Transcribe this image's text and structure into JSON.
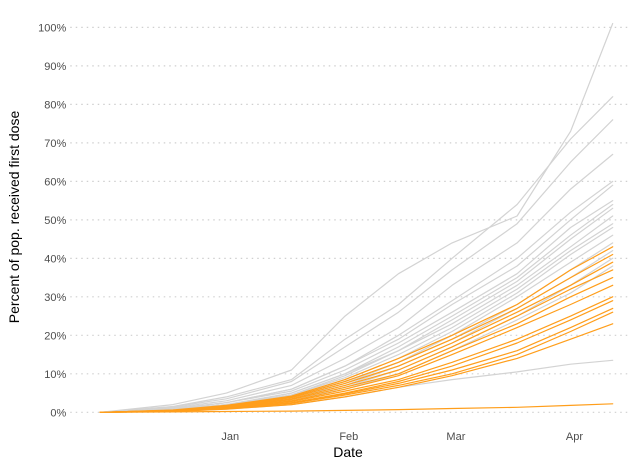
{
  "chart_data": {
    "type": "line",
    "title": "",
    "xlabel": "Date",
    "ylabel": "Percent of pop. received first dose",
    "x_ticks": [
      {
        "date": "2021-01-01",
        "label": "Jan"
      },
      {
        "date": "2021-02-01",
        "label": "Feb"
      },
      {
        "date": "2021-03-01",
        "label": "Mar"
      },
      {
        "date": "2021-04-01",
        "label": "Apr"
      }
    ],
    "y_ticks": [
      0,
      10,
      20,
      30,
      40,
      50,
      60,
      70,
      80,
      90,
      100
    ],
    "y_tick_labels": [
      "0%",
      "10%",
      "20%",
      "30%",
      "40%",
      "50%",
      "60%",
      "70%",
      "80%",
      "90%",
      "100%"
    ],
    "ylim": [
      -2,
      104
    ],
    "xlim": [
      "2020-12-03",
      "2021-04-30"
    ],
    "grid": "horizontal dotted",
    "legend": "none",
    "colors": {
      "gray": "#d3d3d3",
      "orange": "#ff9e1b"
    },
    "x_dates": [
      "2020-12-13",
      "2021-01-01",
      "2021-01-15",
      "2021-02-01",
      "2021-02-15",
      "2021-03-01",
      "2021-03-15",
      "2021-04-01",
      "2021-04-15",
      "2021-04-26"
    ],
    "series": [
      {
        "color": "gray",
        "values": [
          0,
          2.0,
          5.0,
          11,
          25,
          36,
          44,
          51,
          73,
          101
        ]
      },
      {
        "color": "gray",
        "values": [
          0,
          1.5,
          4.0,
          8.5,
          19,
          28,
          40,
          54,
          71,
          82
        ]
      },
      {
        "color": "gray",
        "values": [
          0,
          1.4,
          3.5,
          8.0,
          17,
          26,
          37,
          49,
          65,
          76
        ]
      },
      {
        "color": "gray",
        "values": [
          0,
          1.2,
          3.0,
          7.0,
          14,
          22,
          33,
          44,
          58,
          67
        ]
      },
      {
        "color": "gray",
        "values": [
          0,
          1.0,
          2.5,
          6.0,
          12,
          20,
          29,
          40,
          52,
          60
        ]
      },
      {
        "color": "gray",
        "values": [
          0,
          1.0,
          2.5,
          6.0,
          12,
          19,
          28,
          38,
          50,
          59
        ]
      },
      {
        "color": "gray",
        "values": [
          0,
          0.9,
          2.5,
          5.5,
          11,
          18,
          26,
          36,
          48,
          55
        ]
      },
      {
        "color": "gray",
        "values": [
          0,
          0.8,
          2.0,
          5.0,
          10,
          17,
          25,
          35,
          46,
          54
        ]
      },
      {
        "color": "gray",
        "values": [
          0,
          0.8,
          2.0,
          5.0,
          10,
          16,
          24,
          34,
          45,
          53
        ]
      },
      {
        "color": "gray",
        "values": [
          0,
          0.7,
          2.0,
          4.5,
          9.5,
          16,
          23,
          33,
          43,
          51
        ]
      },
      {
        "color": "gray",
        "values": [
          0,
          0.7,
          1.8,
          4.5,
          9.0,
          15,
          22,
          32,
          42,
          49
        ]
      },
      {
        "color": "gray",
        "values": [
          0,
          0.6,
          1.6,
          4.0,
          8.5,
          14,
          21,
          31,
          41,
          48
        ]
      },
      {
        "color": "gray",
        "values": [
          0,
          0.6,
          1.5,
          4.0,
          8.0,
          13,
          20,
          30,
          39,
          46
        ]
      },
      {
        "color": "gray",
        "values": [
          0,
          0.5,
          1.5,
          3.5,
          7.5,
          13,
          19,
          28,
          37,
          44
        ]
      },
      {
        "color": "gray",
        "values": [
          0,
          0.5,
          1.3,
          3.5,
          7.0,
          12,
          18,
          27,
          35,
          42
        ]
      },
      {
        "color": "gray",
        "values": [
          0,
          0.4,
          1.2,
          3.0,
          6.5,
          11,
          17,
          25,
          33,
          40
        ]
      },
      {
        "color": "gray",
        "values": [
          0,
          0.4,
          1.0,
          3.0,
          6.0,
          10,
          16,
          24,
          31,
          38
        ]
      },
      {
        "color": "gray",
        "values": [
          0,
          0.3,
          0.8,
          2.0,
          4.0,
          6.5,
          8.5,
          10.5,
          12.5,
          13.5
        ]
      },
      {
        "color": "orange",
        "values": [
          0,
          0.6,
          1.8,
          4.2,
          8.5,
          14,
          20,
          28,
          37,
          43
        ]
      },
      {
        "color": "orange",
        "values": [
          0,
          0.5,
          1.6,
          4.0,
          8.0,
          13,
          19,
          27,
          35,
          41
        ]
      },
      {
        "color": "orange",
        "values": [
          0,
          0.5,
          1.5,
          3.8,
          7.5,
          12,
          18,
          26,
          33,
          39
        ]
      },
      {
        "color": "orange",
        "values": [
          0,
          0.4,
          1.4,
          3.5,
          7.0,
          11,
          17,
          25,
          32,
          37
        ]
      },
      {
        "color": "orange",
        "values": [
          0,
          0.4,
          1.3,
          3.3,
          6.5,
          10,
          16,
          23,
          30,
          35
        ]
      },
      {
        "color": "orange",
        "values": [
          0,
          0.4,
          1.2,
          3.0,
          6.0,
          9.5,
          15,
          22,
          28,
          33
        ]
      },
      {
        "color": "orange",
        "values": [
          0,
          0.3,
          1.1,
          2.8,
          5.5,
          8.5,
          13,
          19,
          25,
          30
        ]
      },
      {
        "color": "orange",
        "values": [
          0,
          0.3,
          1.0,
          2.5,
          5.0,
          8.0,
          12,
          18,
          24,
          29
        ]
      },
      {
        "color": "orange",
        "values": [
          0,
          0.3,
          1.0,
          2.5,
          4.8,
          7.5,
          11,
          16,
          22,
          27
        ]
      },
      {
        "color": "orange",
        "values": [
          0,
          0.3,
          0.9,
          2.3,
          4.5,
          7.0,
          10,
          15,
          21,
          26
        ]
      },
      {
        "color": "orange",
        "values": [
          0,
          0.2,
          0.8,
          2.0,
          4.0,
          6.5,
          9.5,
          14,
          19,
          23
        ]
      },
      {
        "color": "orange",
        "values": [
          0,
          0.1,
          0.2,
          0.3,
          0.5,
          0.7,
          1.0,
          1.3,
          1.8,
          2.2
        ]
      }
    ]
  }
}
